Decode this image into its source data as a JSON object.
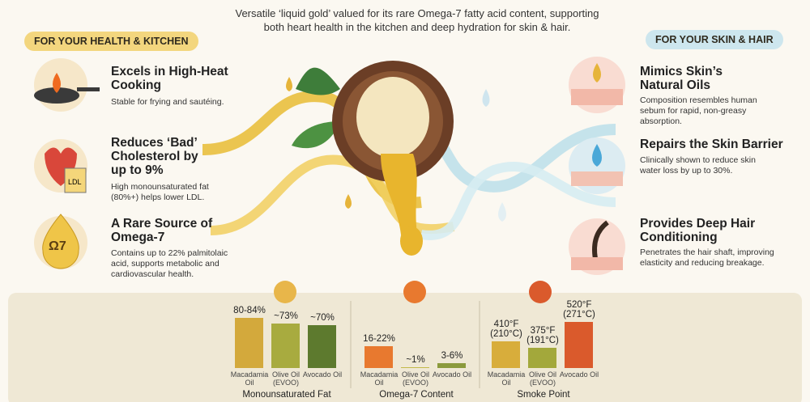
{
  "header": {
    "subtitle": "Versatile ‘liquid gold’ valued for its rare Omega-7 fatty acid content, supporting both heart health in the kitchen and deep hydration for skin & hair."
  },
  "left": {
    "badge": "FOR YOUR HEALTH & KITCHEN",
    "items": [
      {
        "title": "Excels in High-Heat Cooking",
        "text": "Stable for frying and sautéing."
      },
      {
        "title": "Reduces ‘Bad’ Cholesterol by up to 9%",
        "text": "High monounsaturated fat (80%+) helps lower LDL.",
        "icon_label": "LDL"
      },
      {
        "title": "A Rare Source of Omega-7",
        "text": "Contains up to 22% palmitolaic acid, supports metabolic and cardiovascular health.",
        "icon_label": "Ω7"
      }
    ]
  },
  "right": {
    "badge": "FOR YOUR SKIN & HAIR",
    "items": [
      {
        "title": "Mimics Skin’s Natural Oils",
        "text": "Composition resembles human sebum for rapid, non-greasy absorption."
      },
      {
        "title": "Repairs the Skin Barrier",
        "text": "Clinically shown to reduce skin water loss by up to 30%."
      },
      {
        "title": "Provides Deep Hair Conditioning",
        "text": "Penetrates the hair shaft, improving elasticity and reducing breakage."
      }
    ]
  },
  "chart_data": [
    {
      "type": "bar",
      "title": "Monounsaturated Fat",
      "categories": [
        "Macadamia Oil",
        "Olive Oil (EVOO)",
        "Avocado Oil"
      ],
      "values": [
        82,
        73,
        70
      ],
      "value_labels": [
        "80-84%",
        "~73%",
        "~70%"
      ],
      "colors": [
        "#d3a93c",
        "#a8ab3f",
        "#5d7a2e"
      ],
      "ylim": [
        0,
        146
      ]
    },
    {
      "type": "bar",
      "title": "Omega-7 Content",
      "categories": [
        "Macadamia Oil",
        "Olive Oil (EVOO)",
        "Avocado Oil"
      ],
      "values": [
        19,
        1,
        4.5
      ],
      "value_labels": [
        "16-22%",
        "~1%",
        "3-6%"
      ],
      "colors": [
        "#e8792f",
        "#c3b94a",
        "#8b9a3c"
      ],
      "ylim": [
        0,
        78
      ]
    },
    {
      "type": "bar",
      "title": "Smoke Point",
      "categories": [
        "Macadamia Oil",
        "Olive Oil (EVOO)",
        "Avocado Oil"
      ],
      "values": [
        410,
        375,
        520
      ],
      "value_labels": [
        "410°F (210°C)",
        "375°F (191°C)",
        "520°F (271°C)"
      ],
      "colors": [
        "#d8ad3b",
        "#a3a83b",
        "#da5a2c"
      ],
      "ylim": [
        260,
        764
      ]
    }
  ]
}
